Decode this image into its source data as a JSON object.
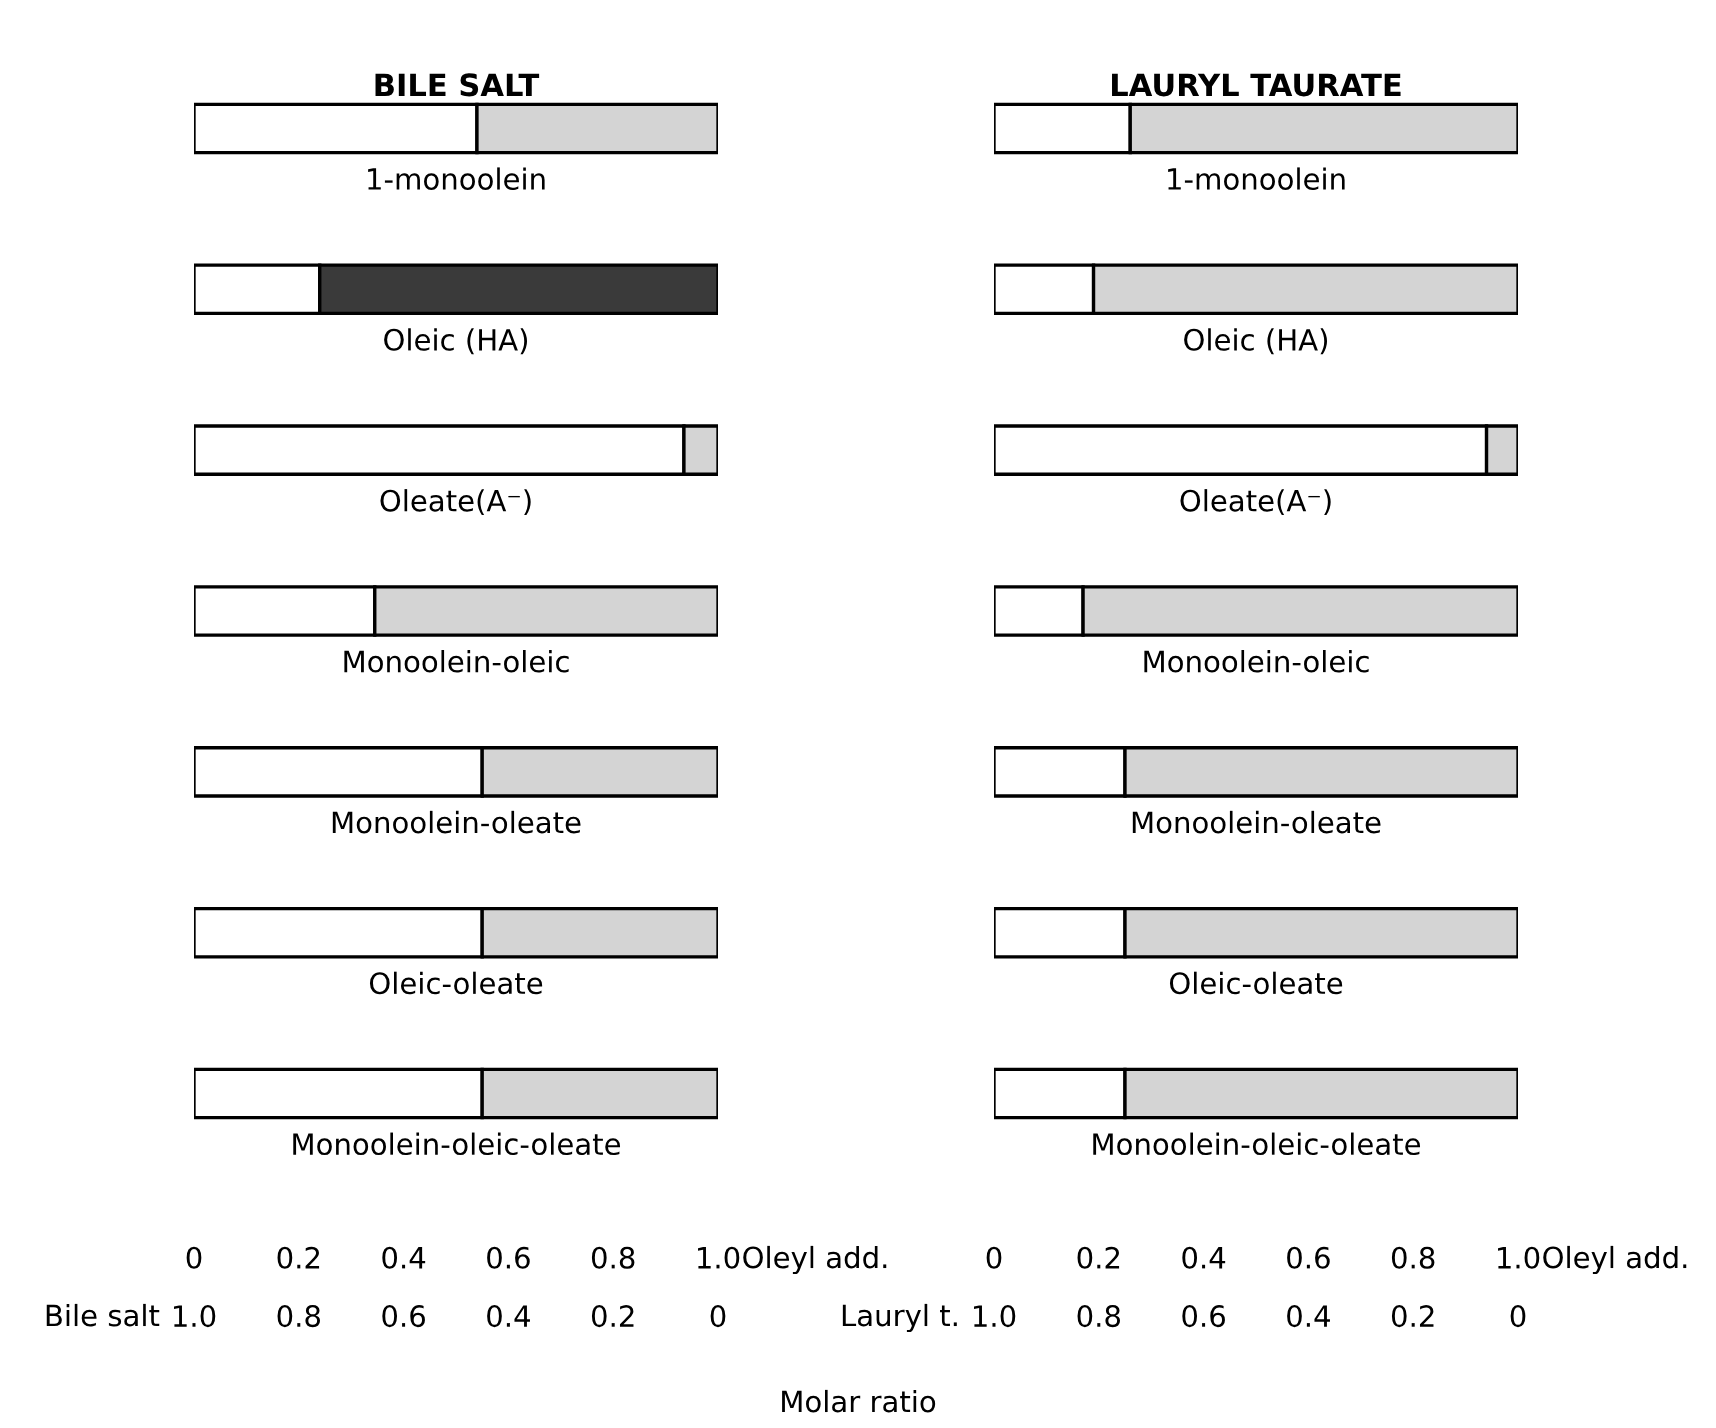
{
  "chart_data": [
    {
      "type": "bar",
      "orientation": "horizontal",
      "stacked": true,
      "title": "BILE SALT",
      "categories": [
        "1-monoolein",
        "Oleic (HA)",
        "Oleate(A⁻)",
        "Monoolein-oleic",
        "Monoolein-oleate",
        "Oleic-oleate",
        "Monoolein-oleic-oleate"
      ],
      "series": [
        {
          "color": "#ffffff",
          "values": [
            0.54,
            0.24,
            0.935,
            0.345,
            0.55,
            0.55,
            0.55
          ]
        },
        {
          "colors": [
            "#d4d4d4",
            "#3a3a3a",
            "#d4d4d4",
            "#d4d4d4",
            "#d4d4d4",
            "#d4d4d4",
            "#d4d4d4"
          ],
          "values": [
            0.46,
            0.76,
            0.065,
            0.655,
            0.45,
            0.45,
            0.45
          ]
        }
      ],
      "xlim": [
        0,
        1
      ],
      "xticks": [
        0,
        0.2,
        0.4,
        0.6,
        0.8,
        {
          "value": 1,
          "label": "1.0"
        }
      ],
      "xlabel": "Oleyl add.",
      "x2lim": [
        1,
        0
      ],
      "x2ticks": [
        {
          "value": 1,
          "label": "1.0"
        },
        0.8,
        0.6,
        0.4,
        0.2,
        0
      ],
      "x2label": "Bile salt",
      "grid": false,
      "legend": false,
      "annotations": [
        "Molar ratio"
      ]
    },
    {
      "type": "bar",
      "orientation": "horizontal",
      "stacked": true,
      "title": "LAURYL TAURATE",
      "categories": [
        "1-monoolein",
        "Oleic (HA)",
        "Oleate(A⁻)",
        "Monoolein-oleic",
        "Monoolein-oleate",
        "Oleic-oleate",
        "Monoolein-oleic-oleate"
      ],
      "series": [
        {
          "color": "#ffffff",
          "values": [
            0.26,
            0.19,
            0.94,
            0.17,
            0.25,
            0.25,
            0.25
          ]
        },
        {
          "color": "#d4d4d4",
          "values": [
            0.74,
            0.81,
            0.06,
            0.83,
            0.75,
            0.75,
            0.75
          ]
        }
      ],
      "xlim": [
        0,
        1
      ],
      "xticks": [
        0,
        0.2,
        0.4,
        0.6,
        0.8,
        {
          "value": 1,
          "label": "1.0"
        }
      ],
      "xlabel": "Oleyl add.",
      "x2lim": [
        1,
        0
      ],
      "x2ticks": [
        {
          "value": 1,
          "label": "1.0"
        },
        0.8,
        0.6,
        0.4,
        0.2,
        0
      ],
      "x2label": "Lauryl t.",
      "grid": false,
      "legend": false
    }
  ]
}
